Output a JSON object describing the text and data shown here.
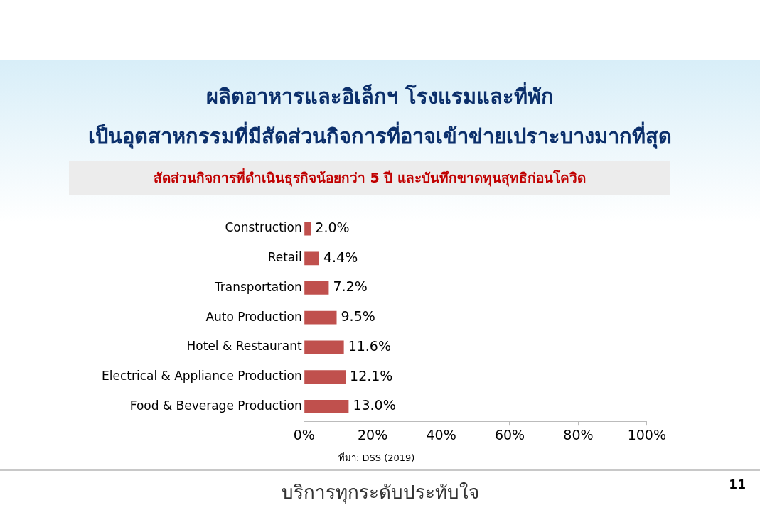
{
  "chart_data": {
    "type": "bar",
    "orientation": "horizontal",
    "title": "ผลิตอาหารและอิเล็กฯ โรงแรมและที่พัก\nเป็นอุตสาหกรรมที่มีสัดส่วนกิจการที่อาจเข้าข่ายเปราะบางมากที่สุด",
    "subtitle": "สัดส่วนกิจการที่ดำเนินธุรกิจน้อยกว่า 5 ปี และบันทึกขาดทุนสุทธิก่อนโควิด",
    "categories": [
      "Construction",
      "Retail",
      "Transportation",
      "Auto Production",
      "Hotel & Restaurant",
      "Electrical & Appliance Production",
      "Food & Beverage Production"
    ],
    "values": [
      2.0,
      4.4,
      7.2,
      9.5,
      11.6,
      12.1,
      13.0
    ],
    "value_labels": [
      "2.0%",
      "4.4%",
      "7.2%",
      "9.5%",
      "11.6%",
      "12.1%",
      "13.0%"
    ],
    "color": "#c0504d",
    "xlim": [
      0,
      100
    ],
    "xticks": [
      {
        "value": 0,
        "label": "0%"
      },
      {
        "value": 20,
        "label": "20%"
      },
      {
        "value": 40,
        "label": "40%"
      },
      {
        "value": 60,
        "label": "60%"
      },
      {
        "value": 80,
        "label": "80%"
      },
      {
        "value": 100,
        "label": "100%"
      }
    ],
    "grid": false,
    "legend": false,
    "annotations": [
      "ที่มา: DSS (2019)",
      "บริการทุกระดับประทับใจ",
      "11"
    ]
  }
}
